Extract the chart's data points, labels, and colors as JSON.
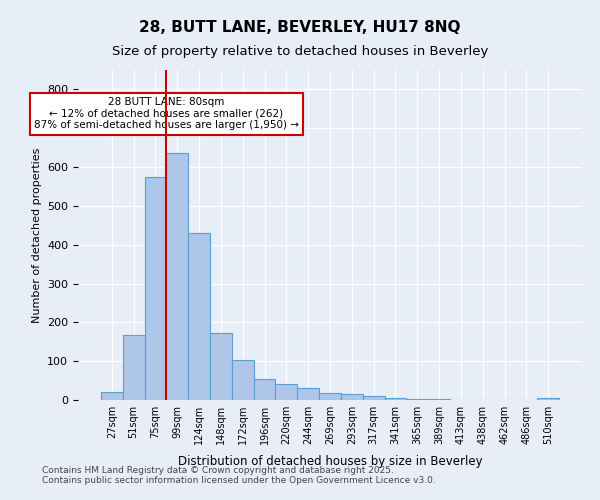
{
  "title1": "28, BUTT LANE, BEVERLEY, HU17 8NQ",
  "title2": "Size of property relative to detached houses in Beverley",
  "xlabel": "Distribution of detached houses by size in Beverley",
  "ylabel": "Number of detached properties",
  "bar_labels": [
    "27sqm",
    "51sqm",
    "75sqm",
    "99sqm",
    "124sqm",
    "148sqm",
    "172sqm",
    "196sqm",
    "220sqm",
    "244sqm",
    "269sqm",
    "293sqm",
    "317sqm",
    "341sqm",
    "365sqm",
    "389sqm",
    "413sqm",
    "438sqm",
    "462sqm",
    "486sqm",
    "510sqm"
  ],
  "bar_values": [
    20,
    168,
    575,
    637,
    430,
    172,
    102,
    55,
    42,
    32,
    18,
    15,
    10,
    4,
    3,
    2,
    1,
    0,
    0,
    0,
    5
  ],
  "bar_color": "#aec6e8",
  "bar_edge_color": "#5a9fd4",
  "vline_x": 2,
  "vline_color": "#cc0000",
  "annotation_text": "28 BUTT LANE: 80sqm\n← 12% of detached houses are smaller (262)\n87% of semi-detached houses are larger (1,950) →",
  "annotation_box_color": "#ffffff",
  "annotation_box_edge": "#cc0000",
  "ylim": [
    0,
    850
  ],
  "yticks": [
    0,
    100,
    200,
    300,
    400,
    500,
    600,
    700,
    800
  ],
  "background_color": "#e8eef8",
  "grid_color": "#ffffff",
  "footer_line1": "Contains HM Land Registry data © Crown copyright and database right 2025.",
  "footer_line2": "Contains public sector information licensed under the Open Government Licence v3.0."
}
